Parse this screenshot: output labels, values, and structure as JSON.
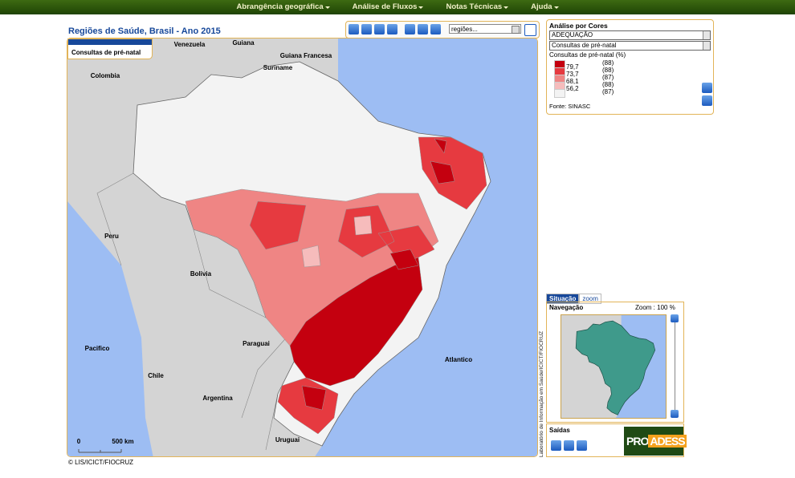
{
  "nav": [
    "Abrangência geográfica",
    "Análise de Fluxos",
    "Notas Técnicas",
    "Ajuda"
  ],
  "title": "Regiões de Saúde, Brasil - Ano 2015",
  "toolbar": {
    "select": "regiões..."
  },
  "map": {
    "tab": "Consultas de pré-natal",
    "labels": [
      "Venezuela",
      "Guiana",
      "Guiana Francesa",
      "Suriname",
      "Colombia",
      "Peru",
      "Bolivia",
      "Paraguai",
      "Pacifico",
      "Chile",
      "Argentina",
      "Atlantico",
      "Uruguai"
    ],
    "scale": [
      "0",
      "500 km"
    ]
  },
  "color_panel": {
    "title": "Análise por Cores",
    "select1": "ADEQUAÇÃO",
    "select2": "Consultas de pré-natal",
    "indicator": "Consultas de pré-natal (%)",
    "swatches": [
      "#c4000f",
      "#e63a40",
      "#ef8584",
      "#f6bcbc",
      "#f3f3f3"
    ],
    "labels": [
      "79,7",
      "73,7",
      "68,1",
      "56,2"
    ],
    "counts": [
      "(88)",
      "(88)",
      "(87)",
      "(88)",
      "(87)"
    ],
    "source": "Fonte: SINASC"
  },
  "navigation": {
    "tabs": [
      "Situação",
      "zoom"
    ],
    "title": "Navegação",
    "zoom": "Zoom : 100 %"
  },
  "credit": "Laboratório de Informação em Saúde/ICICT/FIOCRUZ",
  "outputs": {
    "title": "Saídas",
    "logo": [
      "PRO",
      "ADESS"
    ]
  },
  "footer": "© LIS/ICICT/FIOCRUZ"
}
